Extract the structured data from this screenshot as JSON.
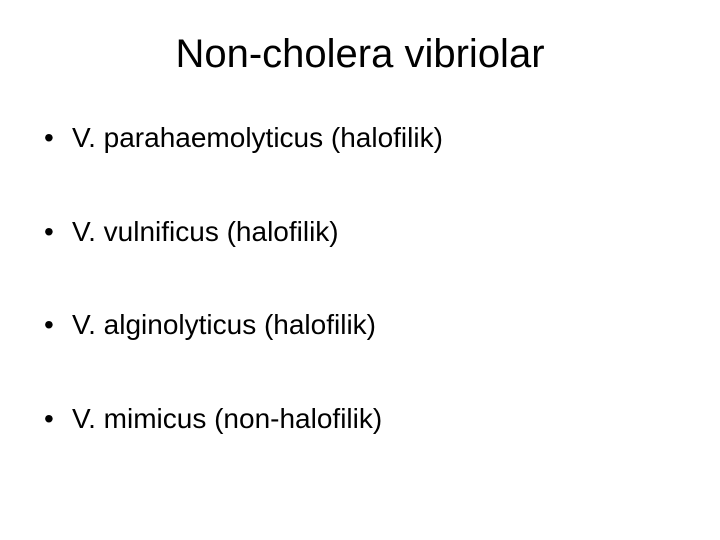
{
  "slide": {
    "title": "Non-cholera vibriolar",
    "bullets": [
      "V. parahaemolyticus (halofilik)",
      "V. vulnificus (halofilik)",
      "V. alginolyticus (halofilik)",
      "V. mimicus (non-halofilik)"
    ],
    "background_color": "#ffffff",
    "text_color": "#000000",
    "title_fontsize": 40,
    "body_fontsize": 28,
    "font_family": "Arial"
  }
}
